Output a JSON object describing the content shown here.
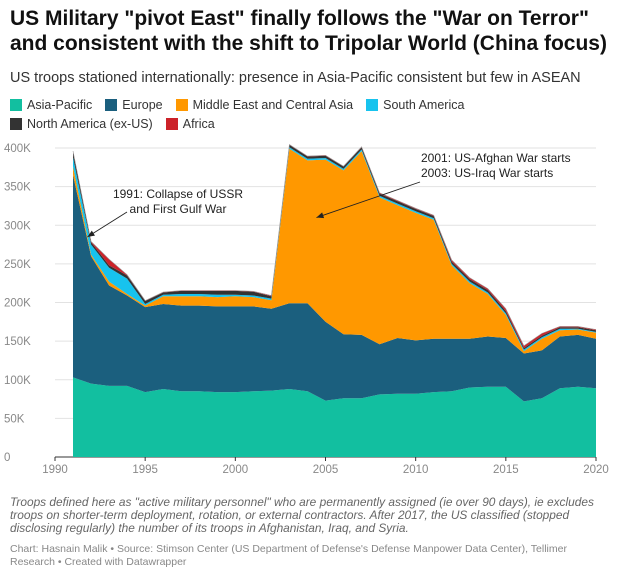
{
  "title": "US Military \"pivot East\" finally follows the \"War on Terror\" and consistent with the shift to Tripolar World (China focus)",
  "subtitle": "US troops stationed internationally: presence in Asia-Pacific consistent but few in ASEAN",
  "notes": "Troops defined here as \"active military personnel\" who are permanently assigned (ie over 90 days), ie excludes troops on shorter-term deployment, rotation, or external contractors. After 2017, the US classified (stopped disclosing regularly) the number of its troops in Afghanistan, Iraq, and Syria.",
  "source": "Chart: Hasnain Malik • Source: Stimson Center (US Department of Defense's Defense Manpower Data Center), Tellimer Research • Created with Datawrapper",
  "chart_data": {
    "type": "area",
    "stacked": true,
    "x": [
      1991,
      1992,
      1993,
      1994,
      1995,
      1996,
      1997,
      1998,
      1999,
      2000,
      2001,
      2002,
      2003,
      2004,
      2005,
      2006,
      2007,
      2008,
      2009,
      2010,
      2011,
      2012,
      2013,
      2014,
      2015,
      2016,
      2017,
      2018,
      2019,
      2020
    ],
    "xlim": [
      1990,
      2020
    ],
    "ylim": [
      0,
      400000
    ],
    "xticks": [
      "1990",
      "1995",
      "2000",
      "2005",
      "2010",
      "2015",
      "2020"
    ],
    "yticks": [
      "0",
      "50K",
      "100K",
      "150K",
      "200K",
      "250K",
      "300K",
      "350K",
      "400K"
    ],
    "grid": true,
    "legend_position": "top",
    "series": [
      {
        "name": "Asia-Pacific",
        "color": "#12bfa0",
        "values": [
          103000,
          95000,
          92000,
          92000,
          84000,
          88000,
          85000,
          85000,
          84000,
          84000,
          85000,
          86000,
          88000,
          85000,
          73000,
          76000,
          76000,
          81000,
          82000,
          82000,
          84000,
          85000,
          90000,
          91000,
          91000,
          72000,
          76000,
          89000,
          91000,
          89000
        ]
      },
      {
        "name": "Europe",
        "color": "#1b5f7e",
        "values": [
          262000,
          165000,
          130000,
          117000,
          110000,
          110000,
          111000,
          111000,
          111000,
          111000,
          110000,
          106000,
          111000,
          114000,
          102000,
          83000,
          82000,
          65000,
          72000,
          69000,
          69000,
          68000,
          63000,
          65000,
          63000,
          62000,
          62000,
          67000,
          67000,
          64000
        ]
      },
      {
        "name": "Middle East and Central Asia",
        "color": "#ff9800",
        "values": [
          11000,
          2000,
          5000,
          2000,
          2000,
          10000,
          12000,
          12000,
          12000,
          13000,
          12000,
          11000,
          200000,
          185000,
          210000,
          212000,
          238000,
          190000,
          172000,
          165000,
          154000,
          95000,
          72000,
          55000,
          30000,
          3000,
          15000,
          8000,
          7000,
          8000
        ]
      },
      {
        "name": "South America",
        "color": "#17c3ee",
        "values": [
          12000,
          13000,
          18000,
          20000,
          2000,
          2000,
          3000,
          3000,
          3000,
          2000,
          2000,
          2000,
          2000,
          2000,
          2000,
          2000,
          2000,
          2000,
          2000,
          2000,
          2000,
          2000,
          2000,
          2000,
          2000,
          2000,
          2000,
          2000,
          1000,
          1000
        ]
      },
      {
        "name": "North America (ex-US)",
        "color": "#333333",
        "values": [
          7000,
          3000,
          3000,
          4000,
          4000,
          3000,
          4000,
          4000,
          5000,
          5000,
          5000,
          3000,
          3000,
          3000,
          3000,
          3000,
          3000,
          3000,
          3000,
          3000,
          3000,
          3000,
          3000,
          3000,
          3000,
          2000,
          2000,
          2000,
          2000,
          2000
        ]
      },
      {
        "name": "Africa",
        "color": "#cc2229",
        "values": [
          1000,
          1000,
          8000,
          1000,
          500,
          500,
          500,
          500,
          500,
          500,
          500,
          1000,
          500,
          500,
          500,
          500,
          500,
          1000,
          1000,
          1000,
          1000,
          2000,
          2000,
          2000,
          3000,
          3000,
          3000,
          1000,
          1000,
          1000
        ]
      }
    ],
    "annotations": [
      {
        "lines": [
          "1991: Collapse of USSR",
          "and First Gulf War"
        ],
        "point": [
          1991.8,
          285000
        ]
      },
      {
        "lines": [
          "2001: US-Afghan War starts",
          "2003: US-Iraq War starts"
        ],
        "point": [
          2004.5,
          310000
        ]
      }
    ]
  }
}
